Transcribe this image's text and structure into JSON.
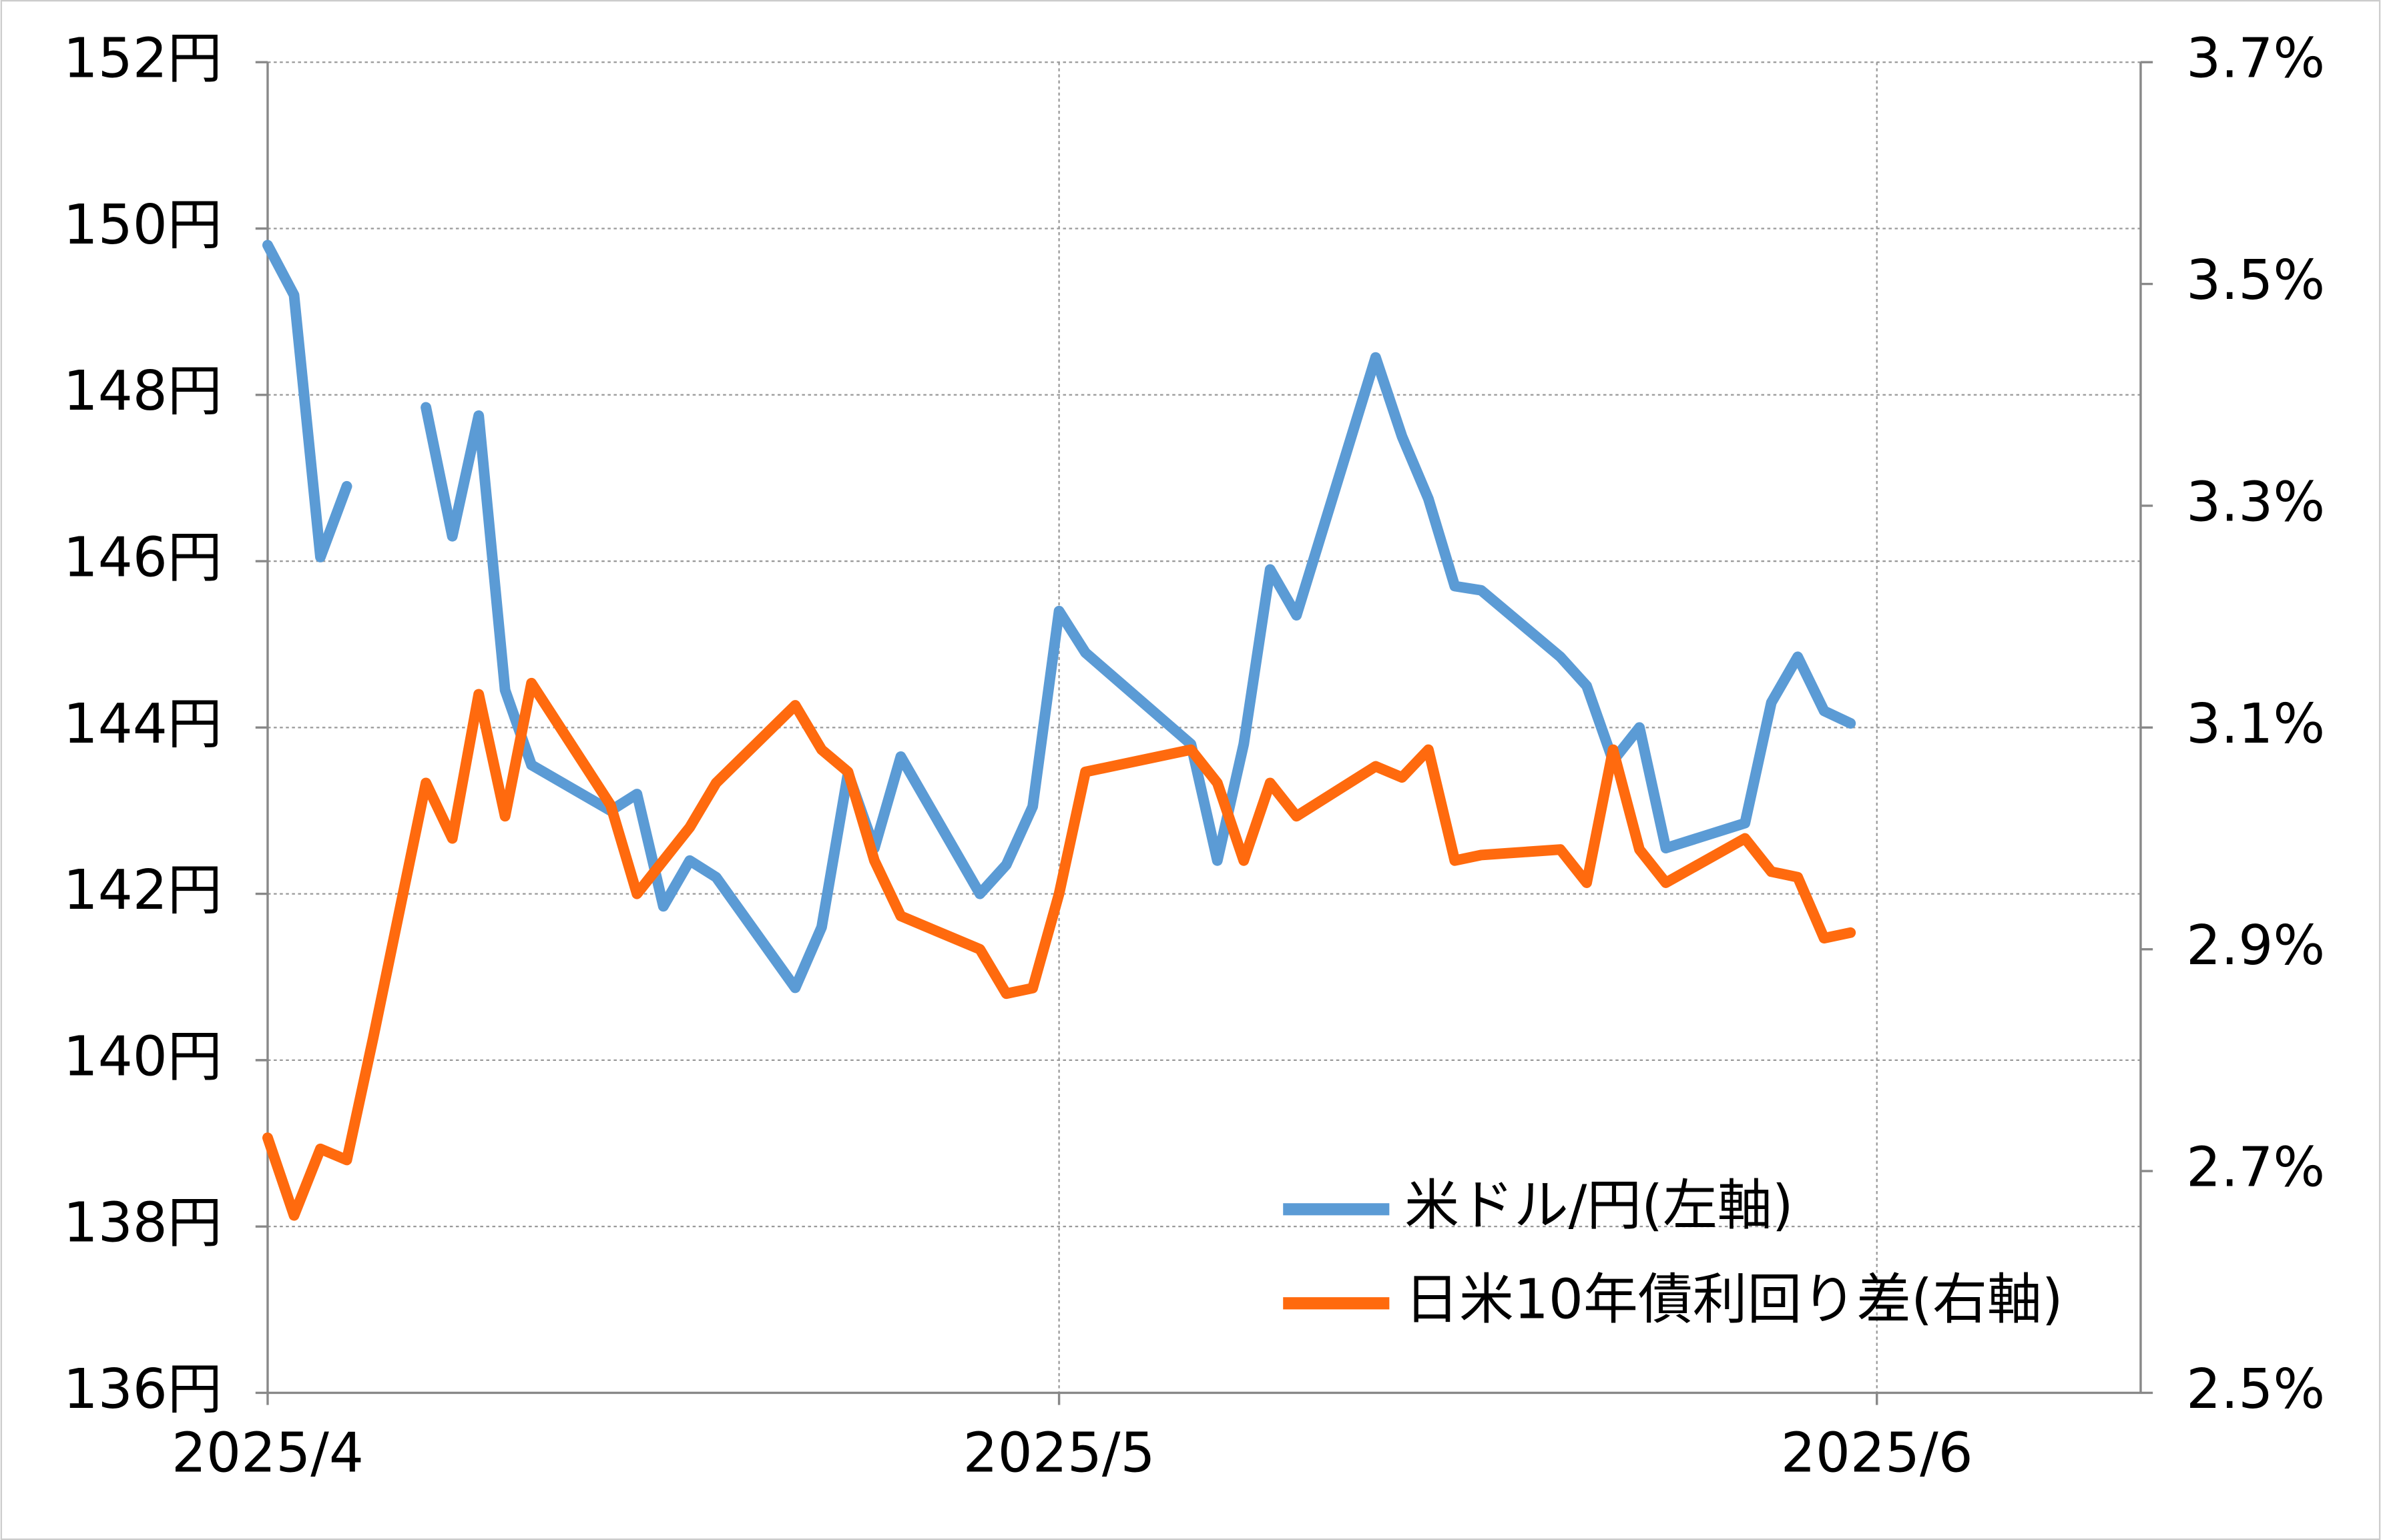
{
  "chart_data": {
    "type": "line",
    "x": [
      0,
      1,
      2,
      3,
      4,
      6,
      7,
      8,
      9,
      10,
      13,
      14,
      15,
      16,
      17,
      20,
      21,
      22,
      23,
      24,
      27,
      28,
      29,
      30,
      31,
      35,
      36,
      37,
      38,
      39,
      42,
      43,
      44,
      45,
      46,
      49,
      50,
      51,
      52,
      53,
      56,
      57,
      58,
      59,
      60
    ],
    "xlim": [
      0,
      71
    ],
    "xticks": [
      {
        "value": 0,
        "label": "2025/4"
      },
      {
        "value": 30,
        "label": "2025/5"
      },
      {
        "value": 61,
        "label": "2025/6"
      }
    ],
    "ylim": [
      136,
      152
    ],
    "yticks": [
      {
        "value": 136,
        "label": "136円"
      },
      {
        "value": 138,
        "label": "138円"
      },
      {
        "value": 140,
        "label": "140円"
      },
      {
        "value": 142,
        "label": "142円"
      },
      {
        "value": 144,
        "label": "144円"
      },
      {
        "value": 146,
        "label": "146円"
      },
      {
        "value": 148,
        "label": "148円"
      },
      {
        "value": 150,
        "label": "150円"
      },
      {
        "value": 152,
        "label": "152円"
      }
    ],
    "y2lim": [
      2.5,
      3.7
    ],
    "y2ticks": [
      {
        "value": 2.5,
        "label": "2.5%"
      },
      {
        "value": 2.7,
        "label": "2.7%"
      },
      {
        "value": 2.9,
        "label": "2.9%"
      },
      {
        "value": 3.1,
        "label": "3.1%"
      },
      {
        "value": 3.3,
        "label": "3.3%"
      },
      {
        "value": 3.5,
        "label": "3.5%"
      },
      {
        "value": 3.7,
        "label": "3.7%"
      }
    ],
    "grid": true,
    "legend": "lower right",
    "series": [
      {
        "name": "米ドル/円(左軸)",
        "color": "#5b9bd5",
        "values": [
          149.8,
          149.2,
          146.05,
          146.9,
          null,
          147.85,
          146.3,
          147.75,
          144.45,
          143.55,
          143.0,
          143.2,
          141.85,
          142.4,
          142.2,
          140.87,
          141.6,
          143.45,
          142.55,
          143.65,
          142.0,
          142.35,
          143.05,
          145.4,
          144.9,
          143.8,
          142.4,
          143.8,
          145.9,
          145.35,
          148.45,
          147.5,
          146.75,
          145.7,
          145.65,
          144.85,
          144.5,
          143.6,
          144.0,
          142.55,
          142.85,
          144.3,
          144.85,
          144.2,
          144.05
        ]
      },
      {
        "name": "日米10年債利回り差(右軸)",
        "color": "#ff6a0e",
        "axis": "y2",
        "values": [
          2.73,
          2.66,
          2.72,
          2.71,
          2.82,
          3.05,
          3.0,
          3.13,
          3.02,
          3.14,
          3.03,
          2.95,
          2.98,
          3.01,
          3.05,
          3.12,
          3.08,
          3.06,
          2.98,
          2.93,
          2.9,
          2.86,
          2.865,
          2.95,
          3.06,
          3.08,
          3.05,
          2.98,
          3.05,
          3.02,
          3.065,
          3.055,
          3.08,
          2.98,
          2.985,
          2.99,
          2.96,
          3.08,
          2.99,
          2.96,
          3.0,
          2.97,
          2.965,
          2.91,
          2.915
        ]
      }
    ]
  }
}
